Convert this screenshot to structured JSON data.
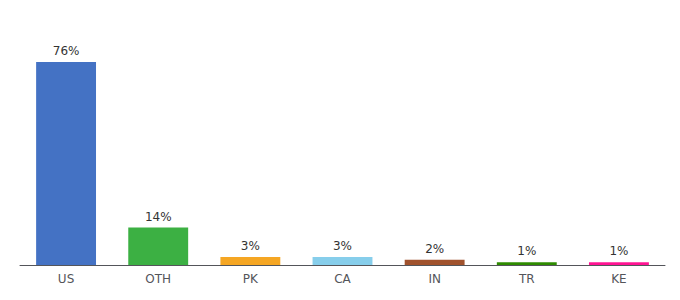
{
  "chart_data": {
    "type": "bar",
    "categories": [
      "US",
      "OTH",
      "PK",
      "CA",
      "IN",
      "TR",
      "KE"
    ],
    "values": [
      76,
      14,
      3,
      3,
      2,
      1,
      1
    ],
    "value_labels": [
      "76%",
      "14%",
      "3%",
      "3%",
      "2%",
      "1%",
      "1%"
    ],
    "colors": [
      "#4472C4",
      "#3CB043",
      "#F5A623",
      "#87CEEB",
      "#A0522D",
      "#2E8B00",
      "#FF1493"
    ],
    "ylim": [
      0,
      88
    ],
    "grid": false,
    "data_labels": true,
    "tick_labels": "x"
  }
}
